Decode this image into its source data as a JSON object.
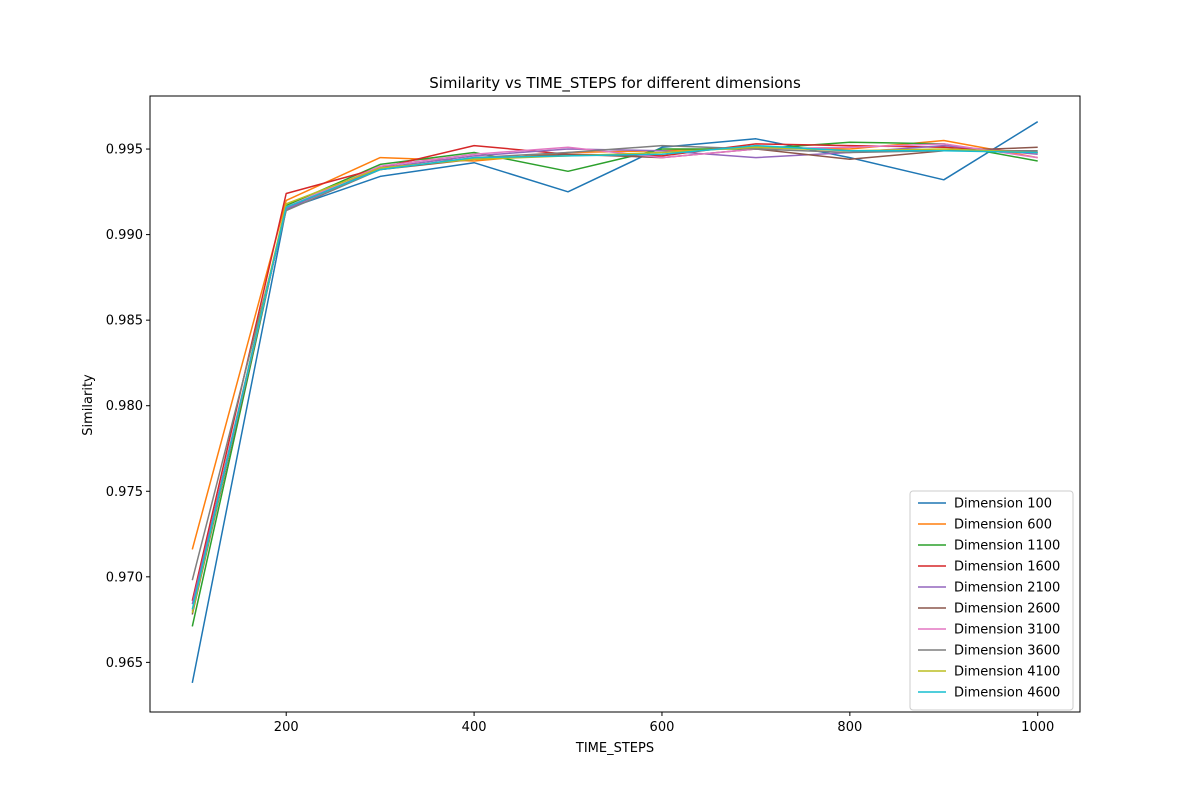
{
  "chart_data": {
    "type": "line",
    "title": "Similarity vs TIME_STEPS for different dimensions",
    "xlabel": "TIME_STEPS",
    "ylabel": "Similarity",
    "xlim": [
      55,
      1045
    ],
    "ylim": [
      0.9621,
      0.9981
    ],
    "xticks": [
      200,
      400,
      600,
      800,
      1000
    ],
    "yticks": [
      0.965,
      0.97,
      0.975,
      0.98,
      0.985,
      0.99,
      0.995
    ],
    "ytick_labels": [
      "0.965",
      "0.970",
      "0.975",
      "0.980",
      "0.985",
      "0.990",
      "0.995"
    ],
    "grid": false,
    "legend_position": "lower-right",
    "x": [
      100,
      200,
      300,
      400,
      500,
      600,
      700,
      800,
      900,
      1000
    ],
    "series": [
      {
        "name": "Dimension 100",
        "color": "#1f77b4",
        "values": [
          0.9638,
          0.9915,
          0.9934,
          0.9942,
          0.9925,
          0.9951,
          0.9956,
          0.9945,
          0.9932,
          0.9966
        ]
      },
      {
        "name": "Dimension 600",
        "color": "#ff7f0e",
        "values": [
          0.9716,
          0.992,
          0.9945,
          0.9943,
          0.9948,
          0.9949,
          0.9951,
          0.995,
          0.9955,
          0.9945
        ]
      },
      {
        "name": "Dimension 1100",
        "color": "#2ca02c",
        "values": [
          0.9671,
          0.9917,
          0.9941,
          0.9948,
          0.9937,
          0.995,
          0.995,
          0.9954,
          0.9953,
          0.9943
        ]
      },
      {
        "name": "Dimension 1600",
        "color": "#d62728",
        "values": [
          0.9686,
          0.9924,
          0.9939,
          0.9952,
          0.9947,
          0.9946,
          0.9953,
          0.9952,
          0.9951,
          0.9948
        ]
      },
      {
        "name": "Dimension 2100",
        "color": "#9467bd",
        "values": [
          0.9684,
          0.9915,
          0.9939,
          0.9946,
          0.995,
          0.9949,
          0.9945,
          0.9948,
          0.9952,
          0.9947
        ]
      },
      {
        "name": "Dimension 2600",
        "color": "#8c564b",
        "values": [
          0.9678,
          0.9916,
          0.9938,
          0.9944,
          0.9947,
          0.9945,
          0.995,
          0.9944,
          0.9949,
          0.9951
        ]
      },
      {
        "name": "Dimension 3100",
        "color": "#e377c2",
        "values": [
          0.968,
          0.9916,
          0.994,
          0.9947,
          0.9951,
          0.9945,
          0.995,
          0.9951,
          0.9953,
          0.9945
        ]
      },
      {
        "name": "Dimension 3600",
        "color": "#7f7f7f",
        "values": [
          0.9698,
          0.9914,
          0.9938,
          0.9945,
          0.9948,
          0.9952,
          0.995,
          0.9948,
          0.9949,
          0.9949
        ]
      },
      {
        "name": "Dimension 4100",
        "color": "#bcbd22",
        "values": [
          0.9679,
          0.9918,
          0.9939,
          0.9944,
          0.9946,
          0.9948,
          0.9951,
          0.9949,
          0.995,
          0.9948
        ]
      },
      {
        "name": "Dimension 4600",
        "color": "#17becf",
        "values": [
          0.9681,
          0.9916,
          0.9938,
          0.9945,
          0.9946,
          0.9947,
          0.9952,
          0.9949,
          0.9949,
          0.9948
        ]
      }
    ]
  }
}
